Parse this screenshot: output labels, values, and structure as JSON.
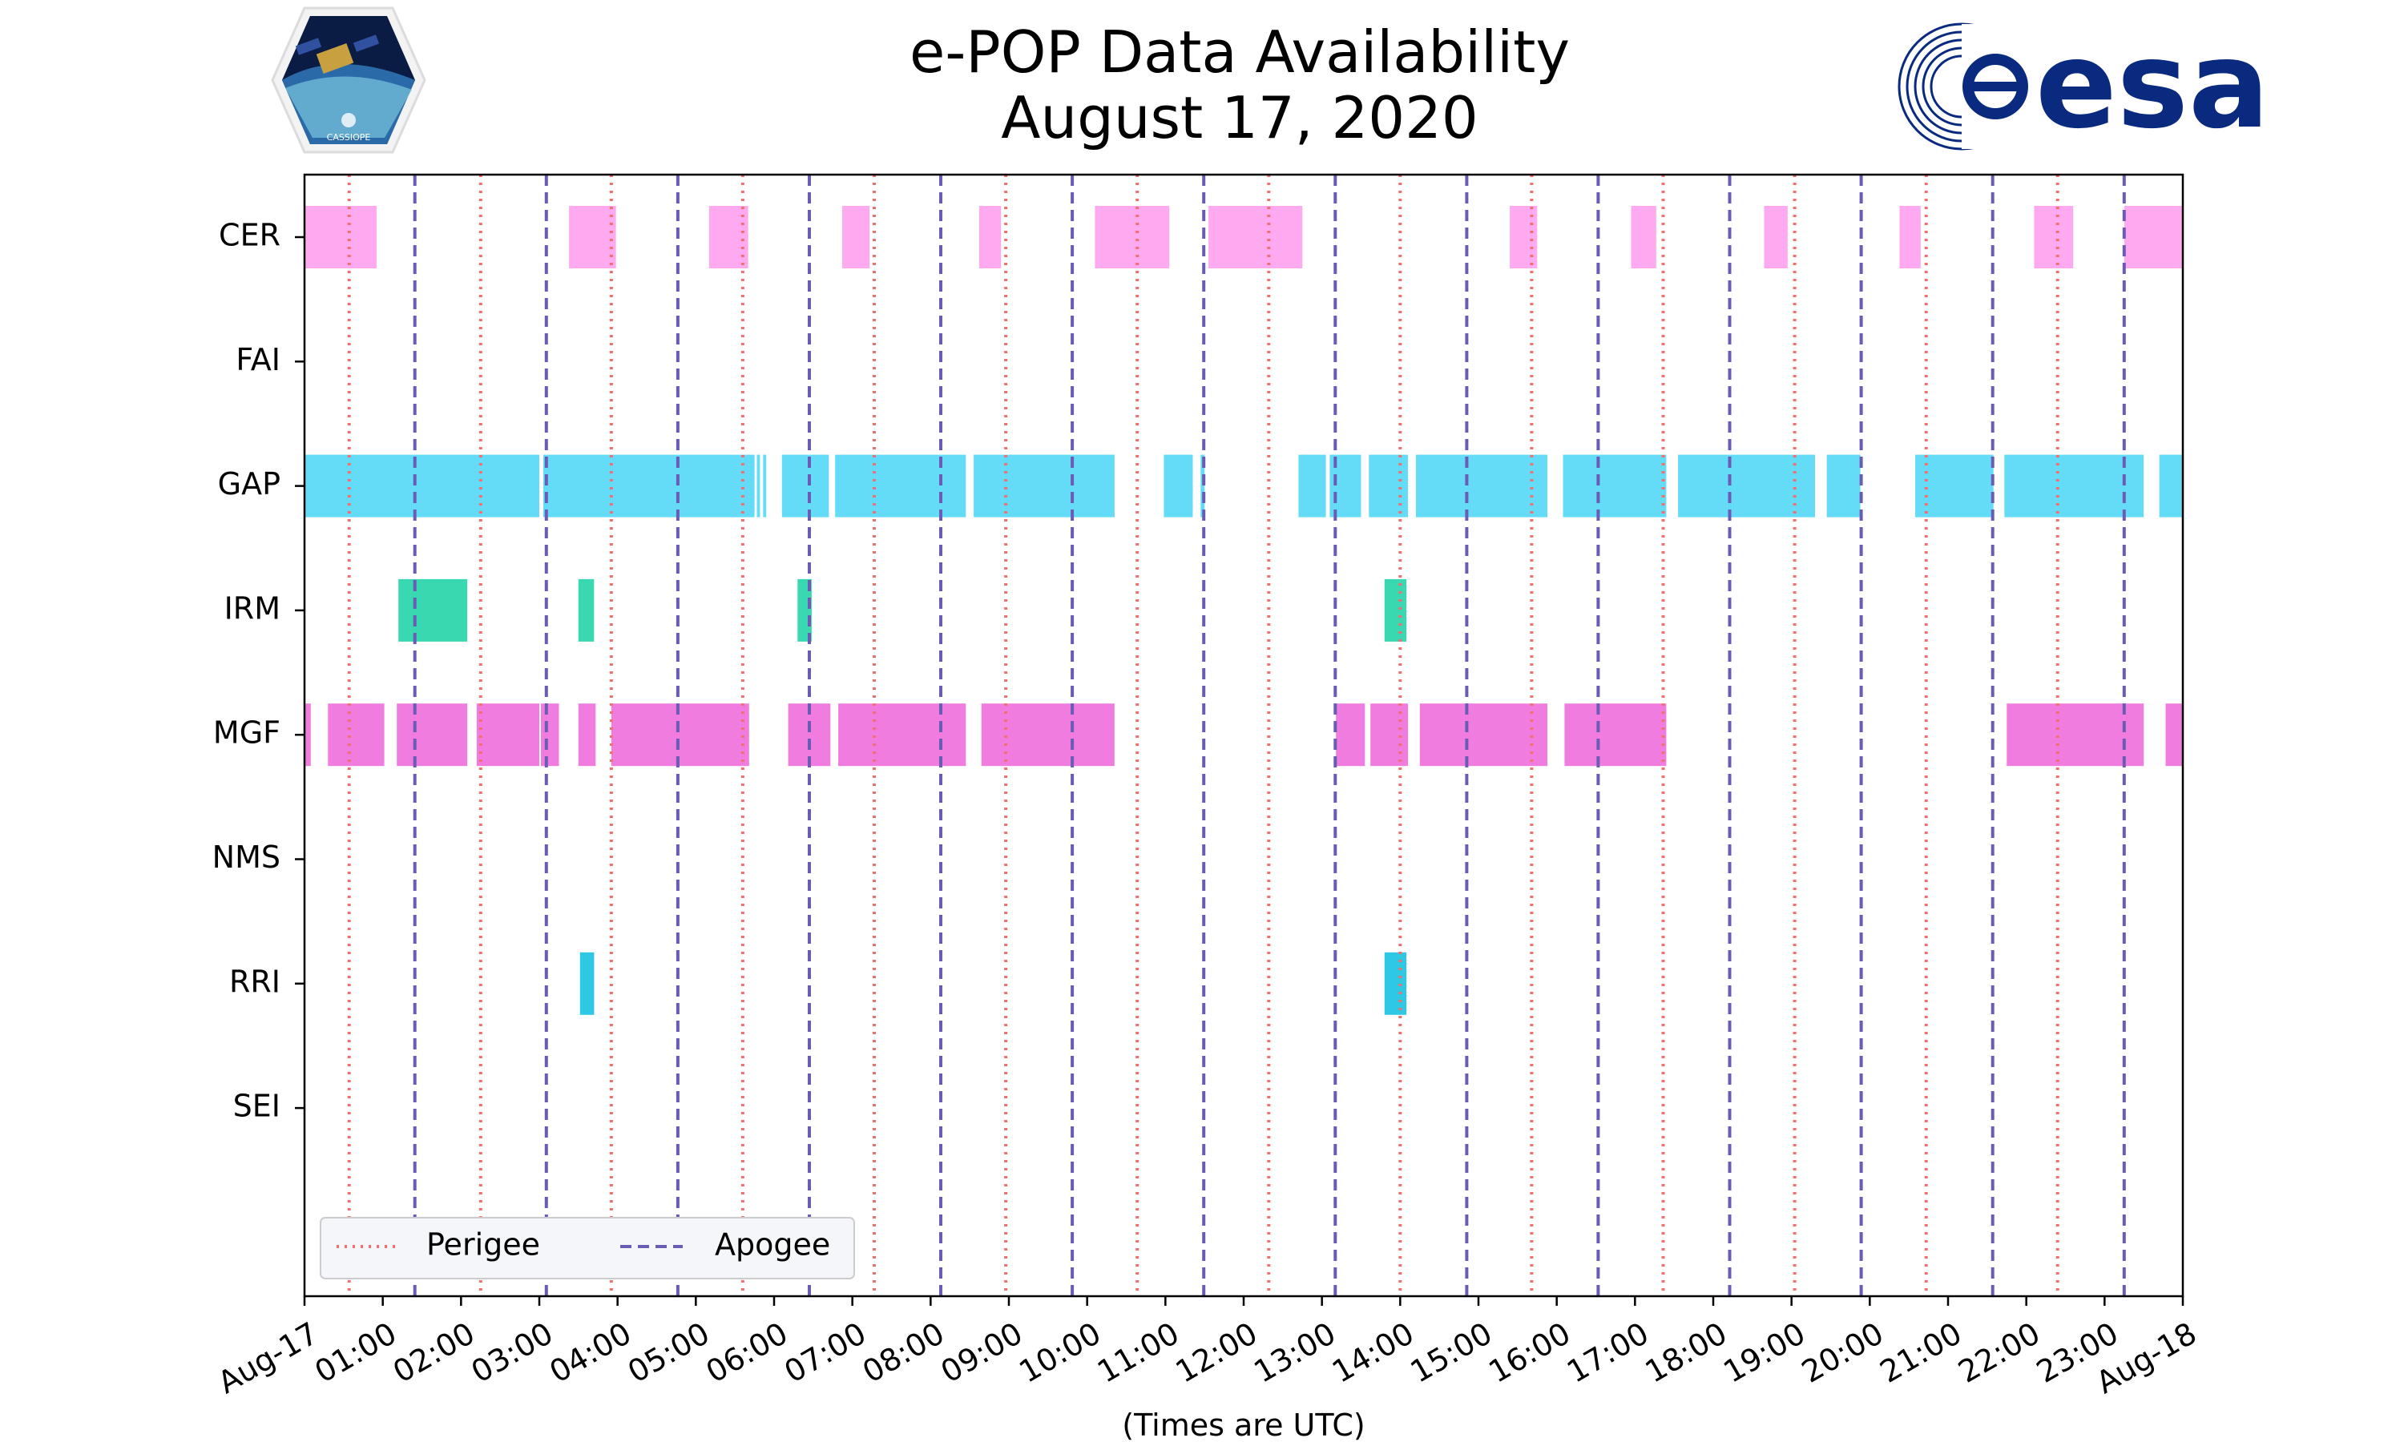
{
  "chart_data": {
    "type": "timeline",
    "title": "e-POP Data Availability",
    "subtitle": "August 17, 2020",
    "xlabel": "(Times are UTC)",
    "xlim_hours": [
      0,
      24
    ],
    "x_tick_labels": [
      "Aug-17",
      "01:00",
      "02:00",
      "03:00",
      "04:00",
      "05:00",
      "06:00",
      "07:00",
      "08:00",
      "09:00",
      "10:00",
      "11:00",
      "12:00",
      "13:00",
      "14:00",
      "15:00",
      "16:00",
      "17:00",
      "18:00",
      "19:00",
      "20:00",
      "21:00",
      "22:00",
      "23:00",
      "Aug-18"
    ],
    "instruments": [
      "CER",
      "FAI",
      "GAP",
      "IRM",
      "MGF",
      "NMS",
      "RRI",
      "SEI"
    ],
    "colors": {
      "CER": "#ffaaf0",
      "FAI": "#ffaaf0",
      "GAP": "#64dcf8",
      "IRM": "#3ad8b0",
      "MGF": "#f07ce0",
      "NMS": "#f07ce0",
      "RRI": "#2ec8e4",
      "SEI": "#2ec8e4",
      "perigee": "#f07070",
      "apogee": "#6a5cb4",
      "esa_blue": "#0a2a80"
    },
    "intervals_hours": {
      "CER": [
        [
          0.0,
          0.92
        ],
        [
          3.38,
          3.98
        ],
        [
          5.17,
          5.67
        ],
        [
          6.87,
          7.22
        ],
        [
          8.62,
          8.9
        ],
        [
          10.1,
          11.05
        ],
        [
          11.55,
          12.75
        ],
        [
          15.4,
          15.75
        ],
        [
          16.95,
          17.27
        ],
        [
          18.65,
          18.95
        ],
        [
          20.38,
          20.65
        ],
        [
          22.1,
          22.6
        ],
        [
          23.25,
          24.0
        ]
      ],
      "FAI": [],
      "GAP": [
        [
          0.0,
          3.0
        ],
        [
          3.05,
          5.75
        ],
        [
          5.78,
          5.82
        ],
        [
          5.86,
          5.9
        ],
        [
          6.1,
          6.7
        ],
        [
          6.78,
          8.45
        ],
        [
          8.55,
          10.35
        ],
        [
          10.98,
          11.35
        ],
        [
          11.45,
          11.5
        ],
        [
          12.7,
          13.05
        ],
        [
          13.1,
          13.5
        ],
        [
          13.6,
          14.1
        ],
        [
          14.2,
          15.88
        ],
        [
          16.08,
          17.4
        ],
        [
          17.55,
          19.3
        ],
        [
          19.45,
          19.88
        ],
        [
          20.58,
          21.58
        ],
        [
          21.72,
          23.5
        ],
        [
          23.7,
          24.0
        ]
      ],
      "IRM": [
        [
          1.2,
          2.08
        ],
        [
          3.5,
          3.7
        ],
        [
          6.3,
          6.48
        ],
        [
          13.8,
          14.08
        ]
      ],
      "MGF": [
        [
          0.0,
          0.08
        ],
        [
          0.3,
          1.02
        ],
        [
          1.18,
          2.08
        ],
        [
          2.2,
          3.0
        ],
        [
          3.02,
          3.25
        ],
        [
          3.5,
          3.72
        ],
        [
          3.92,
          5.68
        ],
        [
          6.18,
          6.72
        ],
        [
          6.82,
          8.45
        ],
        [
          8.65,
          10.35
        ],
        [
          13.18,
          13.55
        ],
        [
          13.62,
          14.1
        ],
        [
          14.25,
          15.88
        ],
        [
          16.1,
          17.4
        ],
        [
          21.75,
          23.5
        ],
        [
          23.78,
          24.0
        ]
      ],
      "NMS": [],
      "RRI": [
        [
          3.52,
          3.7
        ],
        [
          13.8,
          14.08
        ]
      ],
      "SEI": []
    },
    "perigee_hours": [
      0.57,
      2.25,
      3.92,
      5.6,
      7.28,
      8.96,
      10.64,
      12.32,
      14.0,
      15.68,
      17.36,
      19.04,
      20.72,
      22.4
    ],
    "apogee_hours": [
      1.41,
      3.09,
      4.77,
      6.45,
      8.13,
      9.81,
      11.49,
      13.17,
      14.85,
      16.53,
      18.21,
      19.89,
      21.57,
      23.25
    ],
    "legend": {
      "perigee_label": "Perigee",
      "apogee_label": "Apogee",
      "position": "lower-left"
    }
  },
  "logos": {
    "cassiope_caption": "CASSIOPE",
    "esa_wordmark": "esa"
  }
}
